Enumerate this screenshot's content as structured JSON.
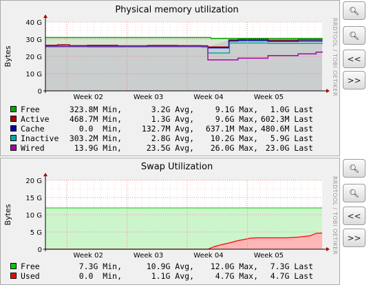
{
  "chart_data": [
    {
      "type": "line",
      "title": "Physical memory utilization",
      "ylabel": "Bytes",
      "ylim": [
        0,
        40
      ],
      "yticks": [
        0,
        10,
        20,
        30,
        40
      ],
      "ytick_labels": [
        "0",
        "10 G",
        "20 G",
        "30 G",
        "40 G"
      ],
      "xlim": [
        1.3,
        5.9
      ],
      "xticks": [
        2,
        3,
        4,
        5
      ],
      "xtick_labels": [
        "Week 02",
        "Week 03",
        "Week 04",
        "Week 05"
      ],
      "watermark": "RRDTOOL / TOBI OETIKER",
      "series": [
        {
          "name": "Free",
          "color": "#00aa00",
          "x": [
            1.3,
            4.0,
            4.05,
            5.9
          ],
          "values": [
            31.0,
            31.0,
            30.5,
            30.2
          ]
        },
        {
          "name": "Active",
          "color": "#aa0000",
          "x": [
            1.3,
            1.5,
            1.7,
            2.0,
            2.5,
            3.0,
            3.5,
            3.9,
            4.0,
            4.35,
            4.5,
            5.0,
            5.5,
            5.9
          ],
          "values": [
            26.5,
            26.8,
            26.3,
            26.5,
            26.2,
            26.4,
            26.3,
            26.2,
            25.5,
            29.6,
            29.9,
            29.5,
            29.8,
            30.0
          ]
        },
        {
          "name": "Cache",
          "color": "#0000aa",
          "x": [
            1.3,
            2.0,
            3.0,
            3.9,
            4.0,
            4.35,
            4.5,
            5.0,
            5.5,
            5.9
          ],
          "values": [
            25.8,
            25.6,
            25.7,
            25.5,
            25.0,
            29.0,
            29.2,
            28.8,
            29.0,
            29.2
          ]
        },
        {
          "name": "Inactive",
          "color": "#00aaaa",
          "x": [
            1.3,
            2.0,
            3.0,
            3.9,
            4.0,
            4.35,
            4.36,
            5.0,
            5.9
          ],
          "values": [
            25.6,
            25.5,
            25.6,
            25.4,
            22.0,
            22.0,
            27.8,
            27.6,
            28.0
          ]
        },
        {
          "name": "Wired",
          "color": "#aa00aa",
          "x": [
            1.3,
            3.9,
            4.0,
            4.05,
            4.5,
            5.0,
            5.5,
            5.8,
            5.9
          ],
          "values": [
            26.0,
            26.0,
            18.0,
            18.0,
            19.0,
            20.5,
            21.5,
            22.5,
            23.0
          ]
        }
      ],
      "legend": [
        {
          "name": "Free",
          "color": "#00aa00",
          "min": "323.8M",
          "avg": "3.2G",
          "max": "9.1G",
          "last": "1.0G"
        },
        {
          "name": "Active",
          "color": "#aa0000",
          "min": "468.7M",
          "avg": "1.3G",
          "max": "9.6G",
          "last": "602.3M"
        },
        {
          "name": "Cache",
          "color": "#0000aa",
          "min": "0.0 ",
          "avg": "132.7M",
          "max": "637.1M",
          "last": "480.6M"
        },
        {
          "name": "Inactive",
          "color": "#00aaaa",
          "min": "303.2M",
          "avg": "2.8G",
          "max": "10.2G",
          "last": "5.9G"
        },
        {
          "name": "Wired",
          "color": "#aa00aa",
          "min": "13.9G",
          "avg": "23.5G",
          "avg_note": "",
          "max": "26.0G",
          "last": "23.0G"
        }
      ]
    },
    {
      "type": "area",
      "title": "Swap Utilization",
      "ylabel": "Bytes",
      "ylim": [
        0,
        20
      ],
      "yticks": [
        0,
        5,
        10,
        15,
        20
      ],
      "ytick_labels": [
        "0",
        "5 G",
        "10 G",
        "15 G",
        "20 G"
      ],
      "xlim": [
        1.3,
        5.9
      ],
      "xticks": [
        2,
        3,
        4,
        5
      ],
      "xtick_labels": [
        "Week 02",
        "Week 03",
        "Week 04",
        "Week 05"
      ],
      "watermark": "RRDTOOL / TOBI OETIKER",
      "series": [
        {
          "name": "Free",
          "color": "#00cc00",
          "x": [
            1.3,
            5.9
          ],
          "values": [
            12.0,
            12.0
          ]
        },
        {
          "name": "Used",
          "color": "#ff0000",
          "x": [
            1.3,
            4.0,
            4.1,
            4.2,
            4.3,
            4.4,
            4.5,
            4.6,
            4.7,
            4.8,
            5.0,
            5.3,
            5.5,
            5.7,
            5.8,
            5.9
          ],
          "values": [
            0,
            0,
            0.7,
            1.2,
            1.6,
            2.0,
            2.5,
            2.8,
            3.2,
            3.3,
            3.3,
            3.3,
            3.5,
            3.9,
            4.6,
            4.7
          ]
        }
      ],
      "legend": [
        {
          "name": "Free",
          "color": "#00cc00",
          "min": "7.3G",
          "avg": "10.9G",
          "max": "12.0G",
          "last": "7.3G"
        },
        {
          "name": "Used",
          "color": "#ff0000",
          "min": "0.0 ",
          "avg": "1.1G",
          "max": "4.7G",
          "last": "4.7G"
        }
      ]
    }
  ],
  "controls": {
    "zoom_in": "+",
    "zoom_out": "−",
    "back": "<<",
    "forward": ">>"
  },
  "legend_words": {
    "min": "Min,",
    "avg": "Avg,",
    "max": "Max,",
    "last": "Last"
  }
}
